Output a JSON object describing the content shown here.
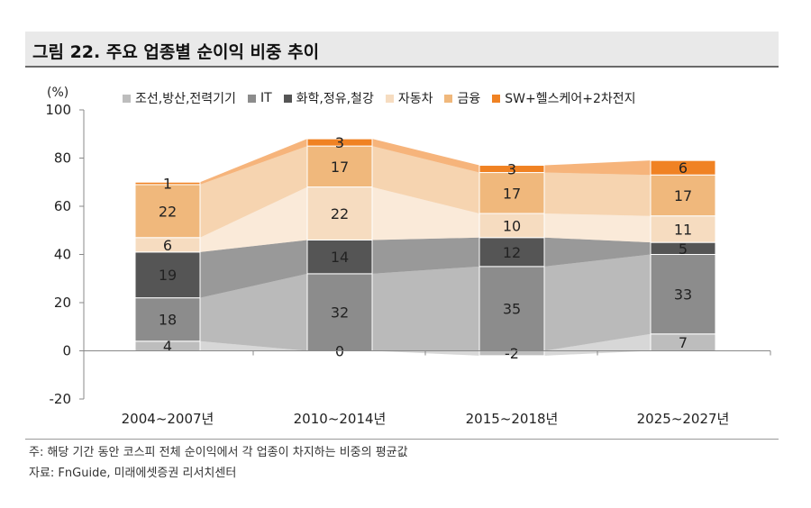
{
  "title": "그림 22. 주요 업종별 순이익 비중 추이",
  "unit_label": "(%)",
  "chart_data": {
    "type": "stacked-bar",
    "title": "그림 22. 주요 업종별 순이익 비중 추이",
    "ylabel": "(%)",
    "ylim": [
      -20,
      100
    ],
    "yticks": [
      -20,
      0,
      20,
      40,
      60,
      80,
      100
    ],
    "categories": [
      "2004~2007년",
      "2010~2014년",
      "2015~2018년",
      "2025~2027년"
    ],
    "series": [
      {
        "name": "조선,방산,전력기기",
        "color": "#bdbdbd",
        "values": [
          4,
          0,
          -2,
          7
        ]
      },
      {
        "name": "IT",
        "color": "#8c8c8c",
        "values": [
          18,
          32,
          35,
          33
        ]
      },
      {
        "name": "화학,정유,철강",
        "color": "#555555",
        "values": [
          19,
          14,
          12,
          5
        ]
      },
      {
        "name": "자동차",
        "color": "#f6dcc0",
        "values": [
          6,
          22,
          10,
          11
        ]
      },
      {
        "name": "금융",
        "color": "#f0b87c",
        "values": [
          22,
          17,
          17,
          17
        ]
      },
      {
        "name": "SW+헬스케어+2차전지",
        "color": "#f08223",
        "values": [
          1,
          3,
          3,
          6
        ]
      }
    ],
    "data_labels": [
      [
        "4",
        "18",
        "19",
        "6",
        "22",
        "1"
      ],
      [
        "0",
        "32",
        "14",
        "22",
        "17",
        "3"
      ],
      [
        "-2",
        "35",
        "12",
        "10",
        "17",
        "3"
      ],
      [
        "7",
        "33",
        "5",
        "11",
        "17",
        "6"
      ]
    ]
  },
  "footnotes": {
    "note": "주: 해당 기간 동안 코스피 전체 순이익에서 각 업종이 차지하는 비중의 평균값",
    "source": "자료: FnGuide, 미래에셋증권 리서치센터"
  }
}
